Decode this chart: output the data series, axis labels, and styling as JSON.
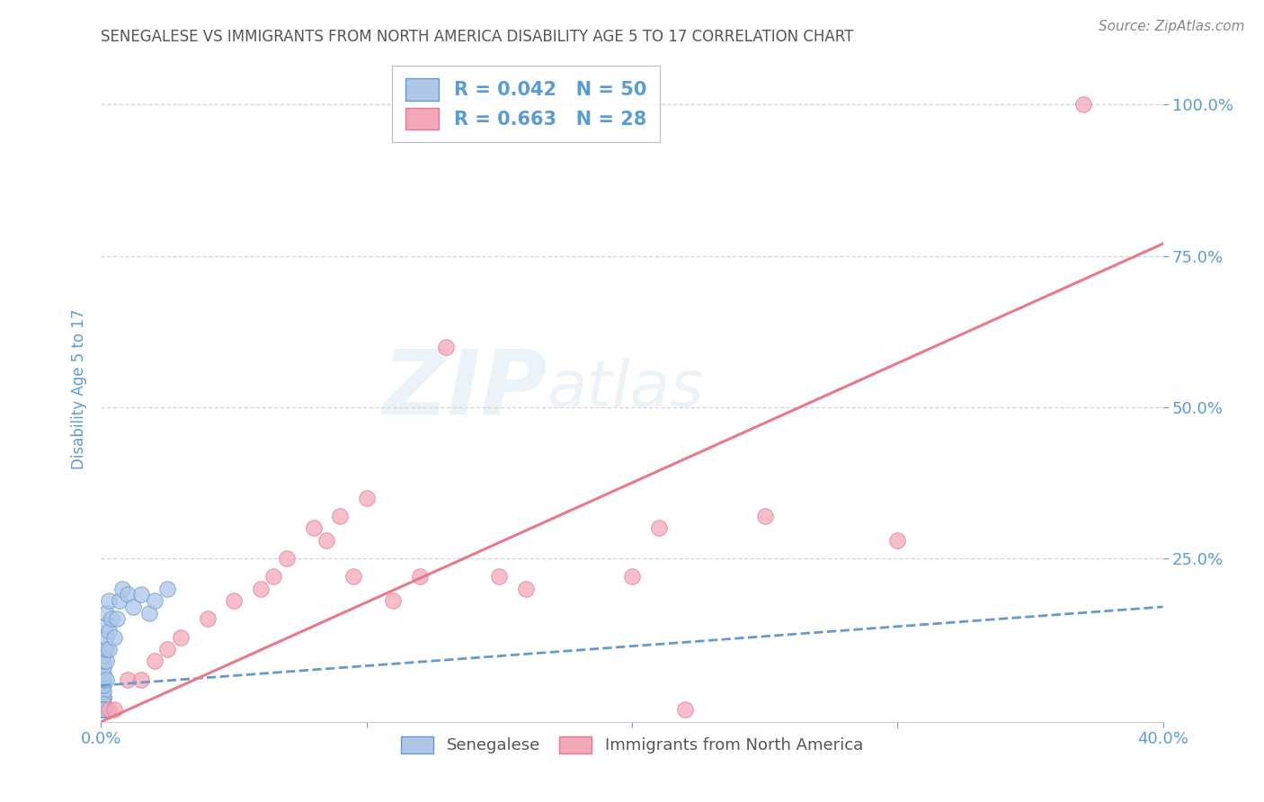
{
  "title": "SENEGALESE VS IMMIGRANTS FROM NORTH AMERICA DISABILITY AGE 5 TO 17 CORRELATION CHART",
  "source": "Source: ZipAtlas.com",
  "ylabel": "Disability Age 5 to 17",
  "xlabel": "",
  "xlim": [
    0.0,
    0.4
  ],
  "ylim": [
    -0.02,
    1.08
  ],
  "yticks": [
    0.25,
    0.5,
    0.75,
    1.0
  ],
  "ytick_labels": [
    "25.0%",
    "50.0%",
    "75.0%",
    "100.0%"
  ],
  "xticks": [
    0.0,
    0.1,
    0.2,
    0.3,
    0.4
  ],
  "xtick_labels": [
    "0.0%",
    "",
    "",
    "",
    "40.0%"
  ],
  "watermark_zip": "ZIP",
  "watermark_atlas": "atlas",
  "legend_label1": "R = 0.042   N = 50",
  "legend_label2": "R = 0.663   N = 28",
  "series1_color": "#aec6e8",
  "series2_color": "#f4a7b9",
  "line1_color": "#6699cc",
  "line2_color": "#e8788a",
  "title_color": "#555555",
  "axis_color": "#5b9bd5",
  "background_color": "#ffffff",
  "grid_color": "#cccccc",
  "senegalese_x": [
    0.001,
    0.001,
    0.001,
    0.001,
    0.001,
    0.001,
    0.001,
    0.001,
    0.001,
    0.001,
    0.001,
    0.001,
    0.001,
    0.001,
    0.001,
    0.001,
    0.001,
    0.001,
    0.001,
    0.001,
    0.002,
    0.002,
    0.002,
    0.002,
    0.002,
    0.002,
    0.003,
    0.003,
    0.003,
    0.004,
    0.005,
    0.006,
    0.007,
    0.008,
    0.01,
    0.012,
    0.015,
    0.018,
    0.02,
    0.025,
    0.001,
    0.001,
    0.001,
    0.001,
    0.001,
    0.001,
    0.001,
    0.001,
    0.001,
    0.001
  ],
  "senegalese_y": [
    0.0,
    0.0,
    0.0,
    0.0,
    0.0,
    0.0,
    0.0,
    0.0,
    0.0,
    0.0,
    0.02,
    0.02,
    0.03,
    0.04,
    0.05,
    0.06,
    0.07,
    0.08,
    0.09,
    0.1,
    0.05,
    0.08,
    0.1,
    0.12,
    0.14,
    0.16,
    0.1,
    0.13,
    0.18,
    0.15,
    0.12,
    0.15,
    0.18,
    0.2,
    0.19,
    0.17,
    0.19,
    0.16,
    0.18,
    0.2,
    0.0,
    0.01,
    0.0,
    0.0,
    0.0,
    0.0,
    0.0,
    0.0,
    0.0,
    0.0
  ],
  "immigrants_x": [
    0.003,
    0.005,
    0.01,
    0.015,
    0.02,
    0.025,
    0.03,
    0.04,
    0.05,
    0.06,
    0.065,
    0.07,
    0.08,
    0.085,
    0.09,
    0.095,
    0.1,
    0.11,
    0.12,
    0.13,
    0.15,
    0.16,
    0.2,
    0.21,
    0.22,
    0.25,
    0.3,
    0.37
  ],
  "immigrants_y": [
    0.0,
    0.0,
    0.05,
    0.05,
    0.08,
    0.1,
    0.12,
    0.15,
    0.18,
    0.2,
    0.22,
    0.25,
    0.3,
    0.28,
    0.32,
    0.22,
    0.35,
    0.18,
    0.22,
    0.6,
    0.22,
    0.2,
    0.22,
    0.3,
    0.0,
    0.32,
    0.28,
    1.0
  ],
  "line1_x0": 0.0,
  "line1_y0": 0.04,
  "line1_x1": 0.4,
  "line1_y1": 0.17,
  "line2_x0": 0.0,
  "line2_y0": -0.02,
  "line2_x1": 0.4,
  "line2_y1": 0.77
}
